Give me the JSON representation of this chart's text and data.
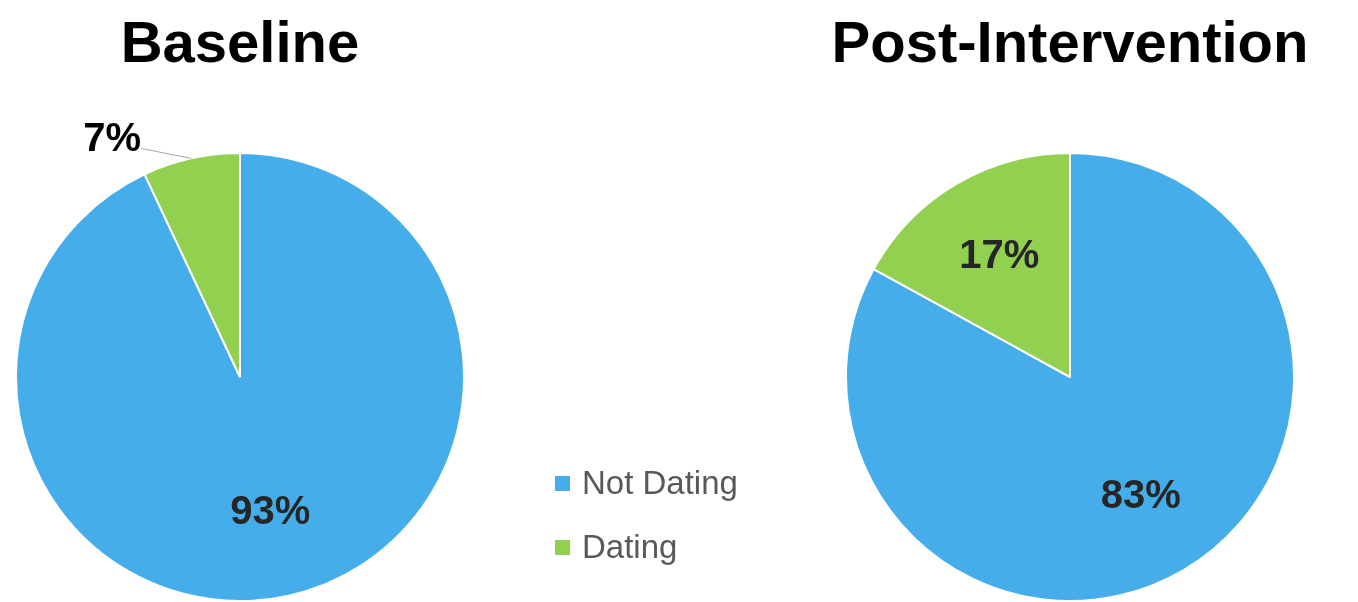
{
  "chart_data": [
    {
      "type": "pie",
      "title": "Baseline",
      "categories": [
        "Not Dating",
        "Dating"
      ],
      "values": [
        93,
        7
      ],
      "colors": [
        "#45aeea",
        "#92d050"
      ],
      "value_labels": [
        "93%",
        "7%"
      ],
      "legend": "bottom right"
    },
    {
      "type": "pie",
      "title": "Post-Intervention",
      "categories": [
        null,
        null
      ],
      "values": [
        83,
        17
      ],
      "colors": [
        "#45aeea",
        "#92d050"
      ],
      "value_labels": [
        "83%",
        "17%"
      ]
    }
  ]
}
